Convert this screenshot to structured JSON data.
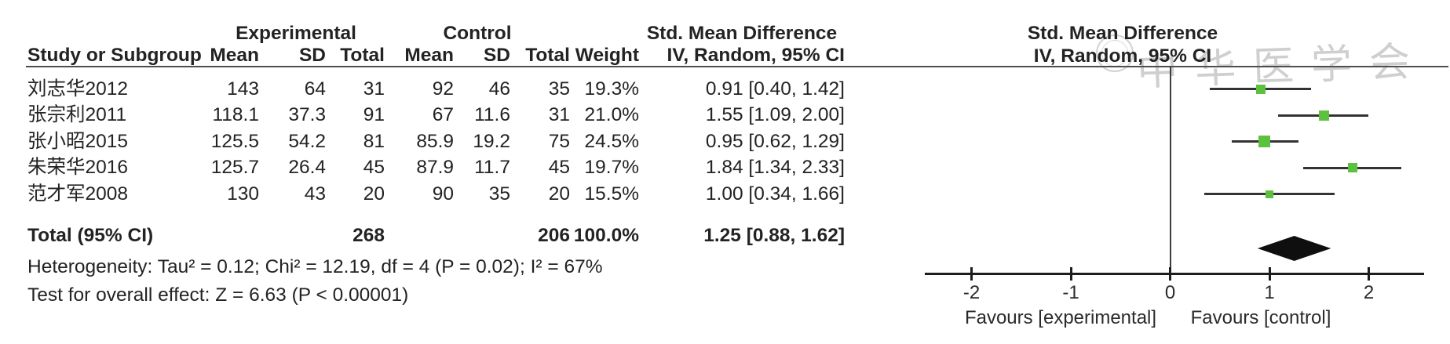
{
  "group_headers": {
    "experimental": "Experimental",
    "control": "Control",
    "smd_left": "Std. Mean Difference",
    "smd_right": "Std. Mean Difference",
    "iv_right": "IV, Random, 95% CI"
  },
  "columns": {
    "study": "Study or Subgroup",
    "mean": "Mean",
    "sd": "SD",
    "total": "Total",
    "mean2": "Mean",
    "sd2": "SD",
    "total2": "Total",
    "weight": "Weight",
    "iv": "IV, Random, 95% CI"
  },
  "rows": [
    {
      "study": "刘志华2012",
      "emean": "143",
      "esd": "64",
      "etotal": "31",
      "cmean": "92",
      "csd": "46",
      "ctotal": "35",
      "weight": "19.3%",
      "ci": "0.91 [0.40, 1.42]"
    },
    {
      "study": "张宗利2011",
      "emean": "118.1",
      "esd": "37.3",
      "etotal": "91",
      "cmean": "67",
      "csd": "11.6",
      "ctotal": "31",
      "weight": "21.0%",
      "ci": "1.55 [1.09, 2.00]"
    },
    {
      "study": "张小昭2015",
      "emean": "125.5",
      "esd": "54.2",
      "etotal": "81",
      "cmean": "85.9",
      "csd": "19.2",
      "ctotal": "75",
      "weight": "24.5%",
      "ci": "0.95 [0.62, 1.29]"
    },
    {
      "study": "朱荣华2016",
      "emean": "125.7",
      "esd": "26.4",
      "etotal": "45",
      "cmean": "87.9",
      "csd": "11.7",
      "ctotal": "45",
      "weight": "19.7%",
      "ci": "1.84 [1.34, 2.33]"
    },
    {
      "study": "范才军2008",
      "emean": "130",
      "esd": "43",
      "etotal": "20",
      "cmean": "90",
      "csd": "35",
      "ctotal": "20",
      "weight": "15.5%",
      "ci": "1.00 [0.34, 1.66]"
    }
  ],
  "total_row": {
    "label": "Total (95% CI)",
    "etotal": "268",
    "ctotal": "206",
    "weight": "100.0%",
    "ci": "1.25 [0.88, 1.62]"
  },
  "footer": {
    "heterogeneity": "Heterogeneity: Tau² = 0.12; Chi² = 12.19, df = 4 (P = 0.02); I² = 67%",
    "overall_effect": "Test for overall effect: Z = 6.63 (P < 0.00001)"
  },
  "axis": {
    "tick_labels": [
      "-2",
      "-1",
      "0",
      "1",
      "2"
    ],
    "favours_left": "Favours [experimental]",
    "favours_right": "Favours [control]"
  },
  "watermark": {
    "text": "中华医学会"
  },
  "colors": {
    "marker_green": "#5cc13e",
    "diamond_black": "#0f0f0f"
  },
  "chart_data": {
    "type": "forest",
    "title": "Std. Mean Difference, IV, Random, 95% CI",
    "x_ticks": [
      -2,
      -1,
      0,
      1,
      2
    ],
    "xlim": [
      -2.5,
      2.55
    ],
    "studies": [
      {
        "name": "刘志华2012",
        "est": 0.91,
        "lo": 0.4,
        "hi": 1.42,
        "weight_pct": 19.3
      },
      {
        "name": "张宗利2011",
        "est": 1.55,
        "lo": 1.09,
        "hi": 2.0,
        "weight_pct": 21.0
      },
      {
        "name": "张小昭2015",
        "est": 0.95,
        "lo": 0.62,
        "hi": 1.29,
        "weight_pct": 24.5
      },
      {
        "name": "朱荣华2016",
        "est": 1.84,
        "lo": 1.34,
        "hi": 2.33,
        "weight_pct": 19.7
      },
      {
        "name": "范才军2008",
        "est": 1.0,
        "lo": 0.34,
        "hi": 1.66,
        "weight_pct": 15.5
      }
    ],
    "total": {
      "est": 1.25,
      "lo": 0.88,
      "hi": 1.62,
      "weight_pct": 100.0,
      "heterogeneity": {
        "tau2": 0.12,
        "chi2": 12.19,
        "df": 4,
        "p": 0.02,
        "i2_pct": 67
      },
      "overall": {
        "z": 6.63,
        "p": "< 0.00001"
      }
    }
  }
}
